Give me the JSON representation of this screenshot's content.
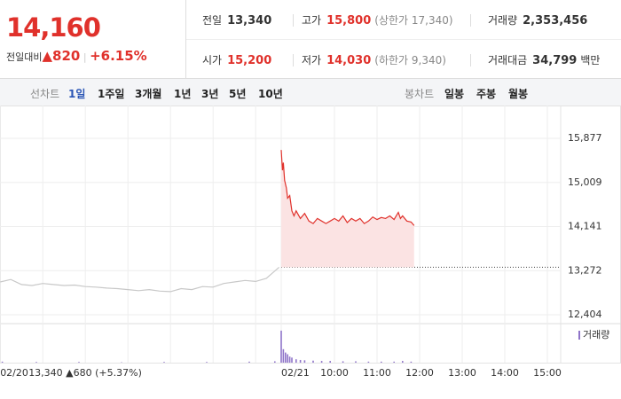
{
  "header": {
    "price": "14,160",
    "change_label": "전일대비",
    "change": "▲820",
    "change_pct": "+6.15%",
    "cells": [
      {
        "label": "전일",
        "value": "13,340"
      },
      {
        "label": "고가",
        "value": "15,800",
        "note": "(상한가 17,340)"
      },
      {
        "label": "거래량",
        "value": "2,353,456"
      },
      {
        "label": "시가",
        "value": "15,200"
      },
      {
        "label": "저가",
        "value": "14,030",
        "note": "(하한가 9,340)"
      },
      {
        "label": "거래대금",
        "value": "34,799",
        "unit": "백만"
      }
    ]
  },
  "tabs": {
    "line_label": "선차트",
    "line_items": [
      "1일",
      "1주일",
      "3개월",
      "1년",
      "3년",
      "5년",
      "10년"
    ],
    "selected": "1일",
    "candle_label": "봉차트",
    "candle_items": [
      "일봉",
      "주봉",
      "월봉"
    ]
  },
  "chart_data": {
    "type": "line",
    "ylim": [
      12230,
      16070
    ],
    "yticks": [
      {
        "value": 15877,
        "label": "15,877"
      },
      {
        "value": 15009,
        "label": "15,009"
      },
      {
        "value": 14141,
        "label": "14,141"
      },
      {
        "value": 13272,
        "label": "13,272"
      },
      {
        "value": 12404,
        "label": "12,404"
      }
    ],
    "xlim": [
      2.15,
      15.3
    ],
    "xticks": [
      {
        "value": 2.15,
        "label": "02/20"
      },
      {
        "value": 8.75,
        "label": "02/21"
      },
      {
        "value": 10,
        "label": "10:00"
      },
      {
        "value": 11,
        "label": "11:00"
      },
      {
        "value": 12,
        "label": "12:00"
      },
      {
        "value": 13,
        "label": "13:00"
      },
      {
        "value": 14,
        "label": "14:00"
      },
      {
        "value": 15,
        "label": "15:00"
      }
    ],
    "xgrid": [
      3.15,
      4.15,
      5.15,
      6.15,
      7.15,
      8.15
    ],
    "grid": true,
    "prev_note": "13,340 ▲680 (+5.37%)",
    "base": 13340,
    "series": [
      {
        "color": "#c8c8c8",
        "x": [
          2.15,
          2.4,
          2.65,
          2.9,
          3.15,
          3.4,
          3.65,
          3.9,
          4.15,
          4.4,
          4.65,
          4.9,
          5.15,
          5.4,
          5.65,
          5.9,
          6.15,
          6.4,
          6.65,
          6.9,
          7.15,
          7.4,
          7.65,
          7.9,
          8.15,
          8.4,
          8.7
        ],
        "values": [
          13050,
          13100,
          13000,
          12980,
          13020,
          13000,
          12980,
          12990,
          12960,
          12950,
          12930,
          12920,
          12900,
          12880,
          12900,
          12870,
          12860,
          12920,
          12900,
          12960,
          12950,
          13020,
          13050,
          13080,
          13060,
          13120,
          13340
        ]
      },
      {
        "color": "#e0312b",
        "fill": "#fbe3e3",
        "x": [
          8.75,
          8.78,
          8.8,
          8.83,
          8.87,
          8.9,
          8.95,
          9.0,
          9.05,
          9.1,
          9.2,
          9.3,
          9.4,
          9.5,
          9.6,
          9.7,
          9.8,
          9.9,
          10.0,
          10.1,
          10.2,
          10.3,
          10.4,
          10.5,
          10.6,
          10.7,
          10.8,
          10.9,
          11.0,
          11.1,
          11.2,
          11.3,
          11.4,
          11.5,
          11.55,
          11.6,
          11.7,
          11.8,
          11.87
        ],
        "values": [
          15650,
          15250,
          15400,
          15050,
          14900,
          14700,
          14750,
          14450,
          14350,
          14450,
          14300,
          14400,
          14250,
          14200,
          14300,
          14250,
          14200,
          14250,
          14300,
          14250,
          14350,
          14220,
          14300,
          14250,
          14300,
          14200,
          14250,
          14330,
          14280,
          14320,
          14300,
          14350,
          14280,
          14420,
          14300,
          14350,
          14250,
          14230,
          14160
        ]
      }
    ],
    "volume": {
      "name": "거래량",
      "color": "#8f74c9",
      "ylim": [
        0,
        100
      ],
      "x": [
        2.2,
        3,
        4,
        5,
        6,
        7,
        8,
        8.6,
        8.75,
        8.8,
        8.85,
        8.9,
        8.95,
        9.0,
        9.1,
        9.2,
        9.3,
        9.5,
        9.7,
        9.9,
        10.2,
        10.5,
        10.8,
        11.1,
        11.4,
        11.6,
        11.8
      ],
      "values": [
        3,
        2,
        2,
        1,
        2,
        2,
        3,
        4,
        95,
        40,
        30,
        25,
        18,
        15,
        10,
        8,
        7,
        6,
        5,
        5,
        4,
        4,
        3,
        3,
        3,
        5,
        3
      ]
    }
  }
}
